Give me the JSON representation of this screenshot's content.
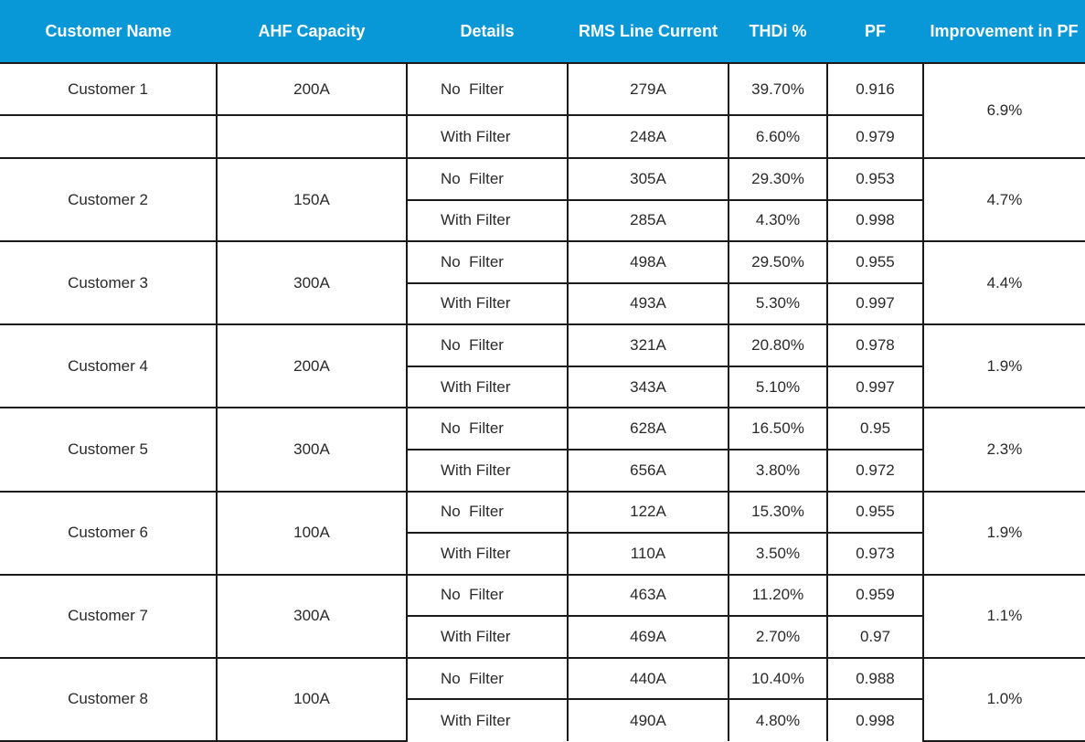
{
  "header": {
    "columns": [
      "Customer Name",
      "AHF Capacity",
      "Details",
      "RMS Line Current",
      "THDi %",
      "PF",
      "Improvement in PF"
    ]
  },
  "table": {
    "customers": [
      {
        "name": "Customer 1",
        "capacity": "200A",
        "improvement": "6.9%",
        "rows": [
          [
            "No  Filter",
            "279A",
            "39.70%",
            "0.916"
          ],
          [
            "With Filter",
            "248A",
            "6.60%",
            "0.979"
          ]
        ]
      },
      {
        "name": "Customer 2",
        "capacity": "150A",
        "improvement": "4.7%",
        "rows": [
          [
            "No  Filter",
            "305A",
            "29.30%",
            "0.953"
          ],
          [
            "With Filter",
            "285A",
            "4.30%",
            "0.998"
          ]
        ]
      },
      {
        "name": "Customer 3",
        "capacity": "300A",
        "improvement": "4.4%",
        "rows": [
          [
            "No  Filter",
            "498A",
            "29.50%",
            "0.955"
          ],
          [
            "With Filter",
            "493A",
            "5.30%",
            "0.997"
          ]
        ]
      },
      {
        "name": "Customer 4",
        "capacity": "200A",
        "improvement": "1.9%",
        "rows": [
          [
            "No  Filter",
            "321A",
            "20.80%",
            "0.978"
          ],
          [
            "With Filter",
            "343A",
            "5.10%",
            "0.997"
          ]
        ]
      },
      {
        "name": "Customer 5",
        "capacity": "300A",
        "improvement": "2.3%",
        "rows": [
          [
            "No  Filter",
            "628A",
            "16.50%",
            "0.95"
          ],
          [
            "With Filter",
            "656A",
            "3.80%",
            "0.972"
          ]
        ]
      },
      {
        "name": "Customer 6",
        "capacity": "100A",
        "improvement": "1.9%",
        "rows": [
          [
            "No  Filter",
            "122A",
            "15.30%",
            "0.955"
          ],
          [
            "With Filter",
            "110A",
            "3.50%",
            "0.973"
          ]
        ]
      },
      {
        "name": "Customer 7",
        "capacity": "300A",
        "improvement": "1.1%",
        "rows": [
          [
            "No  Filter",
            "463A",
            "11.20%",
            "0.959"
          ],
          [
            "With Filter",
            "469A",
            "2.70%",
            "0.97"
          ]
        ]
      },
      {
        "name": "Customer 8",
        "capacity": "100A",
        "improvement": "1.0%",
        "rows": [
          [
            "No  Filter",
            "440A",
            "10.40%",
            "0.988"
          ],
          [
            "With Filter",
            "490A",
            "4.80%",
            "0.998"
          ]
        ]
      }
    ]
  }
}
